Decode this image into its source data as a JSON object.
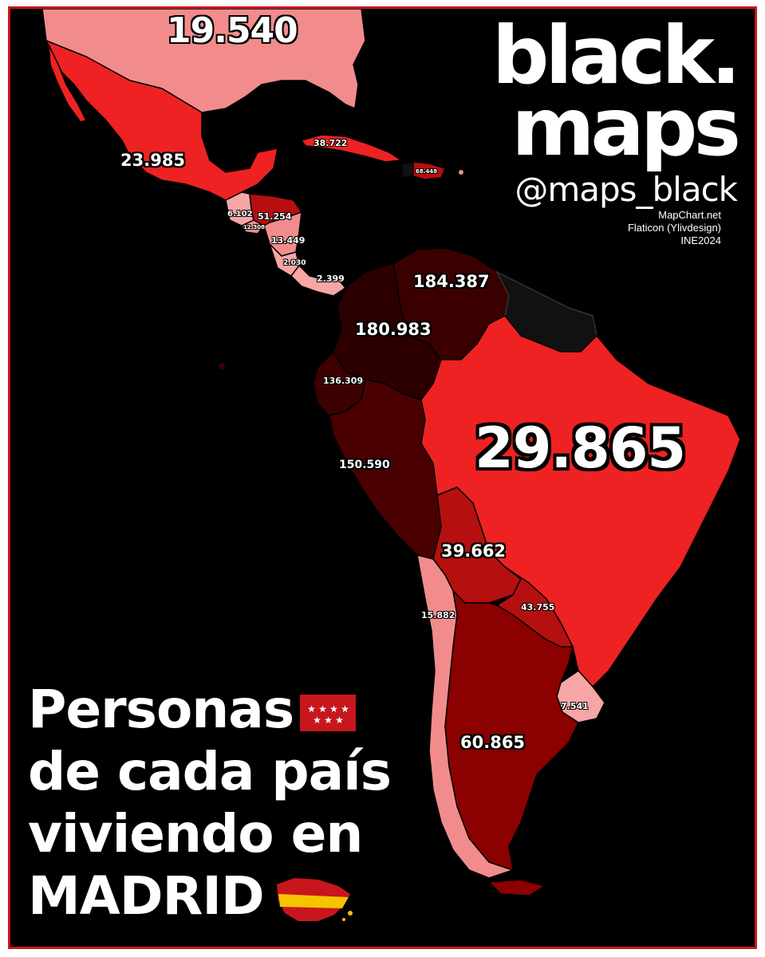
{
  "brand": {
    "line1": "black.",
    "line2": "maps",
    "handle": "@maps_black",
    "credits": [
      "MapChart.net",
      "Flaticon (Ylivdesign)",
      "INE2024"
    ]
  },
  "title": {
    "line1": "Personas",
    "line2": "de cada país",
    "line3": "viviendo en",
    "line4": "MADRID"
  },
  "colors": {
    "background": "#000000",
    "frame": "#c8161d",
    "scale_lightest": "#f28c8c",
    "scale_light": "#ff4a4a",
    "scale_mid": "#ee2222",
    "scale_strong": "#b50f0f",
    "scale_dark": "#8b0000",
    "scale_darkest": "#3a0000",
    "no_data": "#111111"
  },
  "countries": [
    {
      "name": "Estados Unidos",
      "value": "19.540"
    },
    {
      "name": "México",
      "value": "23.985"
    },
    {
      "name": "Cuba",
      "value": "38.722"
    },
    {
      "name": "República Dominicana",
      "value": "68.448"
    },
    {
      "name": "Guatemala",
      "value": "6.102"
    },
    {
      "name": "El Salvador",
      "value": "12.308"
    },
    {
      "name": "Honduras",
      "value": "51.254"
    },
    {
      "name": "Nicaragua",
      "value": "13.449"
    },
    {
      "name": "Costa Rica",
      "value": "2.030"
    },
    {
      "name": "Panamá",
      "value": "2.399"
    },
    {
      "name": "Venezuela",
      "value": "184.387"
    },
    {
      "name": "Colombia",
      "value": "180.983"
    },
    {
      "name": "Ecuador",
      "value": "136.309"
    },
    {
      "name": "Perú",
      "value": "150.590"
    },
    {
      "name": "Brasil",
      "value": "29.865"
    },
    {
      "name": "Bolivia",
      "value": "39.662"
    },
    {
      "name": "Paraguay",
      "value": "43.755"
    },
    {
      "name": "Chile",
      "value": "15.882"
    },
    {
      "name": "Uruguay",
      "value": "7.541"
    },
    {
      "name": "Argentina",
      "value": "60.865"
    }
  ]
}
